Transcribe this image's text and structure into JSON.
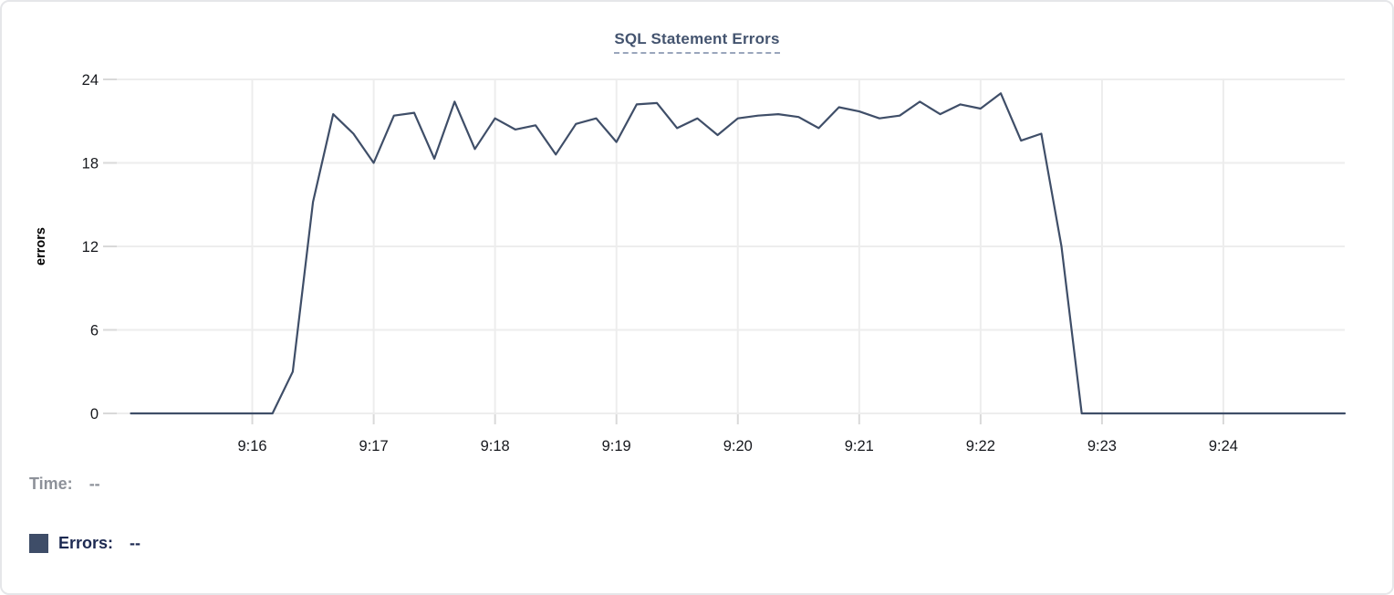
{
  "card": {
    "title": "SQL Statement Errors"
  },
  "tooltip_legend": {
    "time_label": "Time:",
    "time_value": "--",
    "errors_label": "Errors:",
    "errors_value": "--",
    "swatch_color": "#3e4d68"
  },
  "colors": {
    "line": "#3f4e68",
    "grid": "#ededed",
    "tick": "#d9d9d9",
    "axis_text": "#16181d",
    "ylabel_text": "#000000",
    "title": "#44546f",
    "title_underline": "#9aa6bc",
    "time_label": "#8d9199",
    "errors_label": "#1d2a52",
    "card_border": "#e5e6e9",
    "background": "#ffffff"
  },
  "chart_data": {
    "type": "line",
    "title": "SQL Statement Errors",
    "xlabel": "",
    "ylabel": "errors",
    "ylim": [
      0,
      24
    ],
    "y_ticks": [
      0,
      6,
      12,
      18,
      24
    ],
    "x_ticks": [
      "9:16",
      "9:17",
      "9:18",
      "9:19",
      "9:20",
      "9:21",
      "9:22",
      "9:23",
      "9:24"
    ],
    "x_range": [
      "9:15:00",
      "9:25:00"
    ],
    "grid": true,
    "legend_position": "bottom-left",
    "series": [
      {
        "name": "Errors",
        "color": "#3f4e68",
        "points": [
          [
            "9:15:00",
            0
          ],
          [
            "9:15:10",
            0
          ],
          [
            "9:15:20",
            0
          ],
          [
            "9:15:30",
            0
          ],
          [
            "9:15:40",
            0
          ],
          [
            "9:15:50",
            0
          ],
          [
            "9:16:00",
            0
          ],
          [
            "9:16:10",
            0
          ],
          [
            "9:16:20",
            3
          ],
          [
            "9:16:30",
            15.2
          ],
          [
            "9:16:40",
            21.5
          ],
          [
            "9:16:50",
            20.1
          ],
          [
            "9:17:00",
            18
          ],
          [
            "9:17:10",
            21.4
          ],
          [
            "9:17:20",
            21.6
          ],
          [
            "9:17:30",
            18.3
          ],
          [
            "9:17:40",
            22.4
          ],
          [
            "9:17:50",
            19
          ],
          [
            "9:18:00",
            21.2
          ],
          [
            "9:18:10",
            20.4
          ],
          [
            "9:18:20",
            20.7
          ],
          [
            "9:18:30",
            18.6
          ],
          [
            "9:18:40",
            20.8
          ],
          [
            "9:18:50",
            21.2
          ],
          [
            "9:19:00",
            19.5
          ],
          [
            "9:19:10",
            22.2
          ],
          [
            "9:19:20",
            22.3
          ],
          [
            "9:19:30",
            20.5
          ],
          [
            "9:19:40",
            21.2
          ],
          [
            "9:19:50",
            20
          ],
          [
            "9:20:00",
            21.2
          ],
          [
            "9:20:10",
            21.4
          ],
          [
            "9:20:20",
            21.5
          ],
          [
            "9:20:30",
            21.3
          ],
          [
            "9:20:40",
            20.5
          ],
          [
            "9:20:50",
            22
          ],
          [
            "9:21:00",
            21.7
          ],
          [
            "9:21:10",
            21.2
          ],
          [
            "9:21:20",
            21.4
          ],
          [
            "9:21:30",
            22.4
          ],
          [
            "9:21:40",
            21.5
          ],
          [
            "9:21:50",
            22.2
          ],
          [
            "9:22:00",
            21.9
          ],
          [
            "9:22:10",
            23
          ],
          [
            "9:22:20",
            19.6
          ],
          [
            "9:22:30",
            20.1
          ],
          [
            "9:22:40",
            12
          ],
          [
            "9:22:50",
            0
          ],
          [
            "9:23:00",
            0
          ],
          [
            "9:23:10",
            0
          ],
          [
            "9:23:20",
            0
          ],
          [
            "9:23:30",
            0
          ],
          [
            "9:23:40",
            0
          ],
          [
            "9:23:50",
            0
          ],
          [
            "9:24:00",
            0
          ],
          [
            "9:24:10",
            0
          ],
          [
            "9:24:20",
            0
          ],
          [
            "9:24:30",
            0
          ],
          [
            "9:24:40",
            0
          ],
          [
            "9:24:50",
            0
          ],
          [
            "9:25:00",
            0
          ]
        ]
      }
    ]
  }
}
